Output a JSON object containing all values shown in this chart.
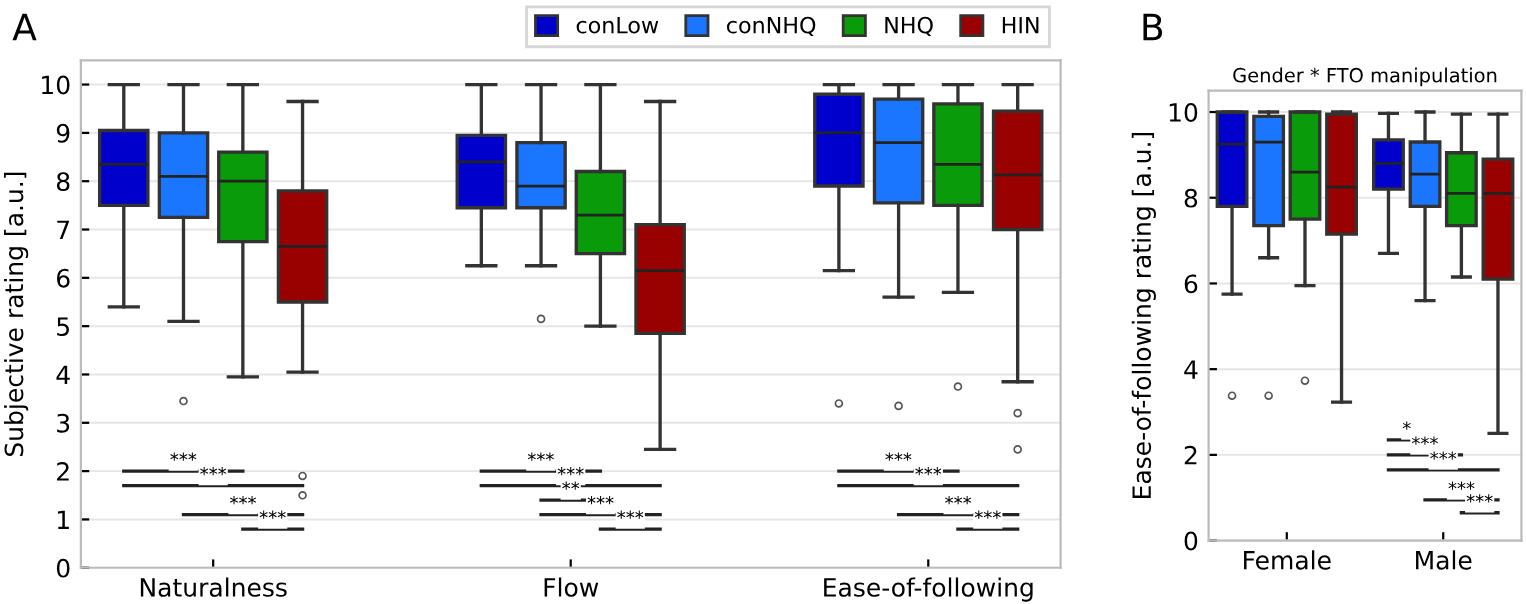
{
  "chart_data": [
    {
      "type": "box",
      "ylabel": "Subjective rating [a.u.]",
      "categories": [
        "Naturalness",
        "Flow",
        "Ease-of-following"
      ],
      "ylim": [
        0,
        10.5
      ],
      "yticks": [
        0,
        1,
        2,
        3,
        4,
        5,
        6,
        7,
        8,
        9,
        10
      ],
      "grid": "y",
      "legend": "top right",
      "marker": "circle",
      "series": [
        {
          "name": "conLow",
          "color": "#0000cc",
          "boxes": [
            {
              "low": 5.4,
              "q1": 7.5,
              "median": 8.35,
              "q3": 9.05,
              "high": 10
            },
            {
              "low": 6.25,
              "q1": 7.45,
              "median": 8.4,
              "q3": 8.95,
              "high": 10
            },
            {
              "low": 6.15,
              "q1": 7.9,
              "median": 9.0,
              "q3": 9.8,
              "high": 10,
              "outliers": [
                3.4
              ]
            }
          ]
        },
        {
          "name": "conNHQ",
          "color": "#1a75ff",
          "boxes": [
            {
              "low": 5.1,
              "q1": 7.25,
              "median": 8.1,
              "q3": 9.0,
              "high": 10,
              "outliers": [
                3.45
              ]
            },
            {
              "low": 6.25,
              "q1": 7.45,
              "median": 7.9,
              "q3": 8.8,
              "high": 10,
              "outliers": [
                5.15
              ]
            },
            {
              "low": 5.6,
              "q1": 7.55,
              "median": 8.8,
              "q3": 9.7,
              "high": 10,
              "outliers": [
                3.35
              ]
            }
          ]
        },
        {
          "name": "NHQ",
          "color": "#0a9b0a",
          "boxes": [
            {
              "low": 3.95,
              "q1": 6.75,
              "median": 8.0,
              "q3": 8.6,
              "high": 10
            },
            {
              "low": 5.0,
              "q1": 6.5,
              "median": 7.3,
              "q3": 8.2,
              "high": 10
            },
            {
              "low": 5.7,
              "q1": 7.5,
              "median": 8.35,
              "q3": 9.6,
              "high": 10,
              "outliers": [
                3.75
              ]
            }
          ]
        },
        {
          "name": "HIN",
          "color": "#990000",
          "boxes": [
            {
              "low": 4.05,
              "q1": 5.5,
              "median": 6.65,
              "q3": 7.8,
              "high": 9.65,
              "outliers": [
                1.9,
                1.5
              ]
            },
            {
              "low": 2.45,
              "q1": 4.85,
              "median": 6.15,
              "q3": 7.1,
              "high": 9.65
            },
            {
              "low": 3.85,
              "q1": 7.0,
              "median": 8.13,
              "q3": 9.45,
              "high": 10,
              "outliers": [
                3.2,
                2.45
              ]
            }
          ]
        }
      ],
      "annotations": [
        "A",
        "***",
        "***",
        "***",
        "***",
        "***",
        "***",
        "**",
        "***",
        "***",
        "***",
        "***",
        "***",
        "***"
      ]
    },
    {
      "type": "box",
      "title": "Gender * FTO manipulation",
      "ylabel": "Ease-of-following rating [a.u.]",
      "categories": [
        "Female",
        "Male"
      ],
      "ylim": [
        0,
        10.5
      ],
      "yticks": [
        0,
        2,
        4,
        6,
        8,
        10
      ],
      "grid": "y",
      "marker": "circle",
      "series": [
        {
          "color": "#0000cc",
          "boxes": [
            {
              "low": 5.75,
              "q1": 7.8,
              "median": 9.25,
              "q3": 10,
              "high": 10,
              "outliers": [
                3.38
              ]
            },
            {
              "low": 6.7,
              "q1": 8.2,
              "median": 8.8,
              "q3": 9.35,
              "high": 9.97
            }
          ]
        },
        {
          "color": "#1a75ff",
          "boxes": [
            {
              "low": 6.6,
              "q1": 7.35,
              "median": 9.3,
              "q3": 9.9,
              "high": 10,
              "outliers": [
                3.38
              ]
            },
            {
              "low": 5.6,
              "q1": 7.8,
              "median": 8.55,
              "q3": 9.3,
              "high": 10
            }
          ]
        },
        {
          "color": "#0a9b0a",
          "boxes": [
            {
              "low": 5.95,
              "q1": 7.5,
              "median": 8.6,
              "q3": 10,
              "high": 10,
              "outliers": [
                3.73
              ]
            },
            {
              "low": 6.15,
              "q1": 7.35,
              "median": 8.1,
              "q3": 9.05,
              "high": 9.95
            }
          ]
        },
        {
          "color": "#990000",
          "boxes": [
            {
              "low": 3.23,
              "q1": 7.15,
              "median": 8.25,
              "q3": 9.95,
              "high": 10
            },
            {
              "low": 2.5,
              "q1": 6.1,
              "median": 8.1,
              "q3": 8.9,
              "high": 9.95
            }
          ]
        }
      ],
      "annotations": [
        "B",
        "*",
        "***",
        "***",
        "***",
        "***"
      ]
    }
  ]
}
